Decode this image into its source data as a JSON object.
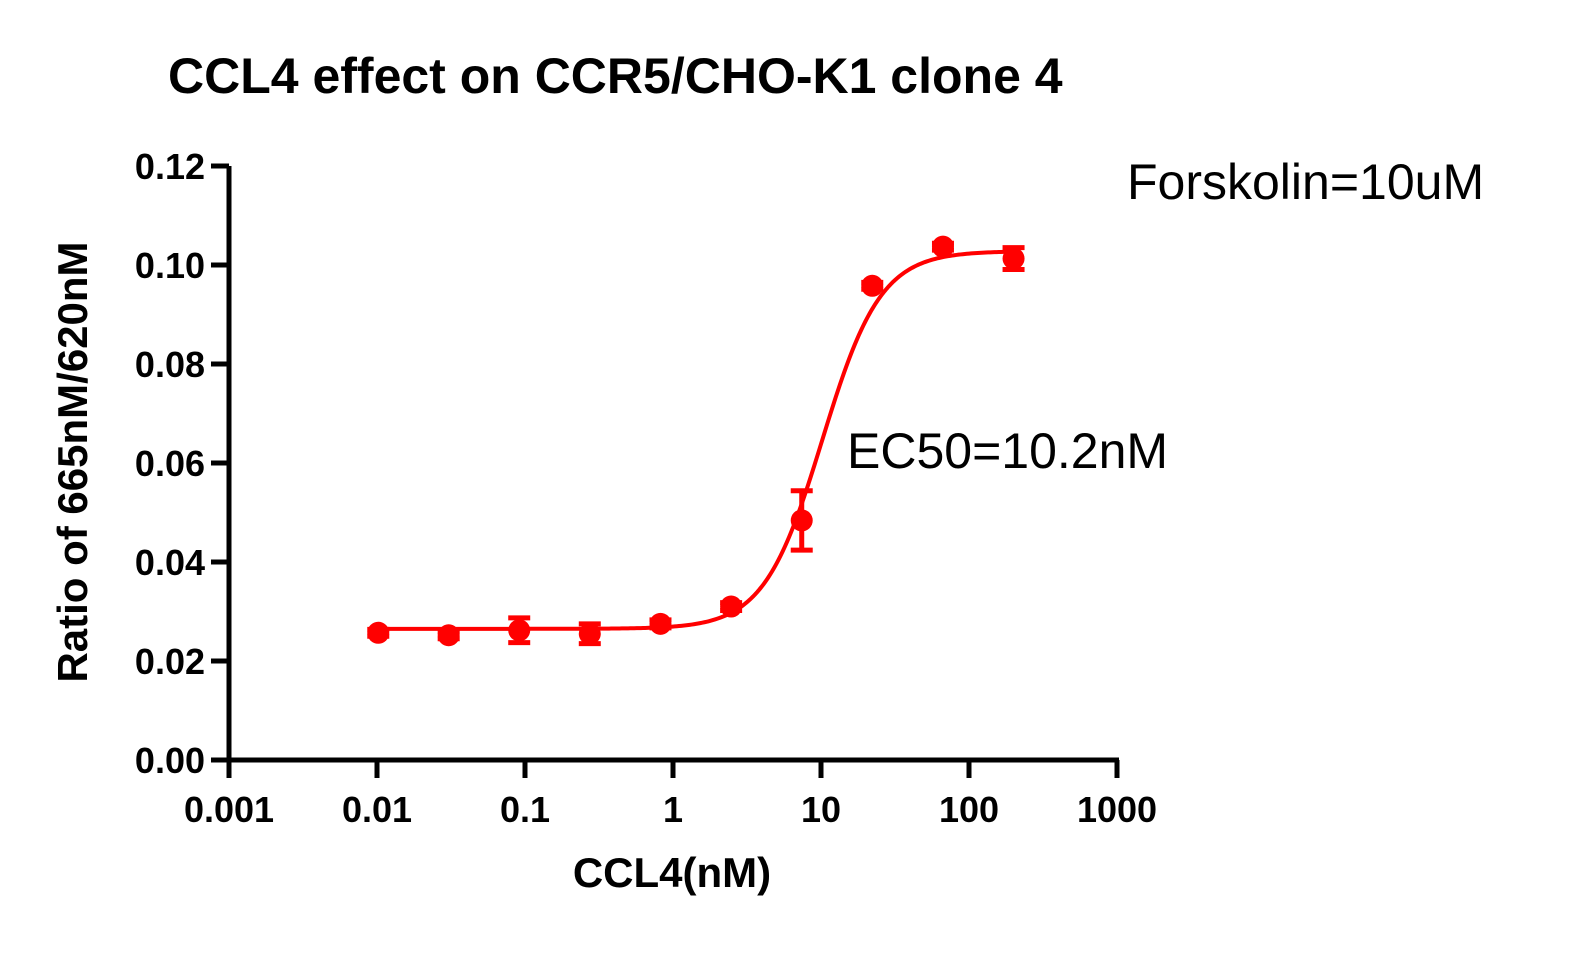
{
  "chart_data": {
    "type": "scatter",
    "title": "CCL4 effect on CCR5/CHO-K1 clone 4",
    "xlabel": "CCL4(nM)",
    "ylabel": "Ratio of 665nM/620nM",
    "x_scale": "log",
    "xlim": [
      0.001,
      1000
    ],
    "ylim": [
      0,
      0.12
    ],
    "x_ticks": [
      0.001,
      0.01,
      0.1,
      1,
      10,
      100,
      1000
    ],
    "x_tick_labels": [
      "0.001",
      "0.01",
      "0.1",
      "1",
      "10",
      "100",
      "1000"
    ],
    "y_ticks": [
      0,
      0.02,
      0.04,
      0.06,
      0.08,
      0.1,
      0.12
    ],
    "y_tick_labels": [
      "0.00",
      "0.02",
      "0.04",
      "0.06",
      "0.08",
      "0.10",
      "0.12"
    ],
    "grid": false,
    "color": "#ff0000",
    "points": [
      {
        "x": 0.0102,
        "y": 0.0257,
        "err": 0.0007
      },
      {
        "x": 0.0305,
        "y": 0.0252,
        "err": 0.0007
      },
      {
        "x": 0.0914,
        "y": 0.0262,
        "err": 0.0025
      },
      {
        "x": 0.274,
        "y": 0.0255,
        "err": 0.002
      },
      {
        "x": 0.823,
        "y": 0.0275,
        "err": 0.0008
      },
      {
        "x": 2.47,
        "y": 0.031,
        "err": 0.0008
      },
      {
        "x": 7.41,
        "y": 0.0484,
        "err": 0.006
      },
      {
        "x": 22.2,
        "y": 0.0958,
        "err": 0.0007
      },
      {
        "x": 66.7,
        "y": 0.1037,
        "err": 0.0007
      },
      {
        "x": 200,
        "y": 0.1013,
        "err": 0.0022
      }
    ],
    "fit": {
      "bottom": 0.0265,
      "top": 0.1028,
      "ec50": 10.2,
      "hill": 2.2,
      "x_range": [
        0.0102,
        200
      ]
    },
    "annotations": [
      {
        "text": "Forskolin=10uM"
      },
      {
        "text": "EC50=10.2nM"
      }
    ]
  }
}
